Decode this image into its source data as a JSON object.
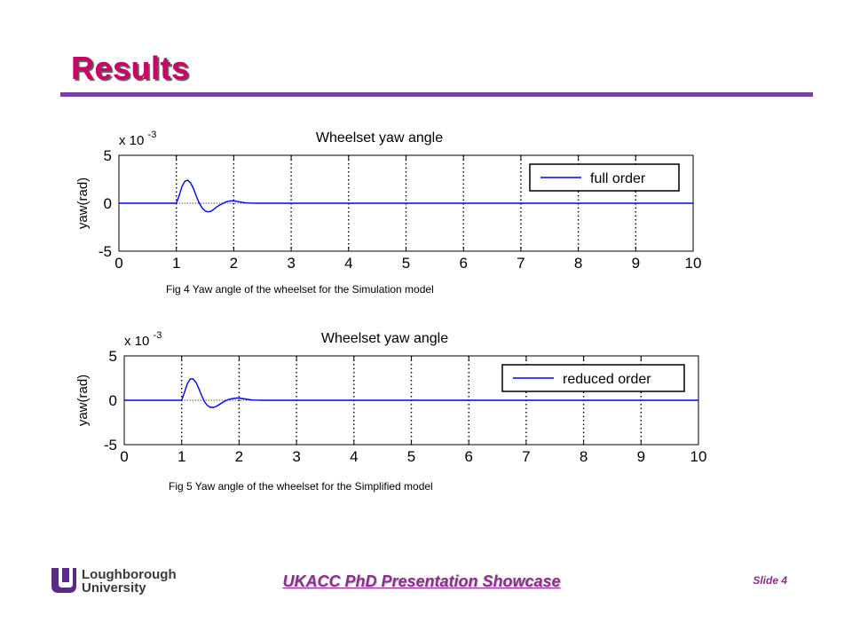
{
  "slide": {
    "title": "Results",
    "footer": "UKACC PhD Presentation Showcase",
    "slide_number": "Slide 4",
    "logo": {
      "line1": "Loughborough",
      "line2": "University",
      "mark_color": "#5b2a86"
    },
    "colors": {
      "title": "#cc0066",
      "rule": "#7b3fa0",
      "footer": "#8e2c8e",
      "series": "#0000ff"
    }
  },
  "figures": [
    {
      "caption": "Fig 4 Yaw angle of the wheelset for the Simulation model",
      "chart": {
        "title": "Wheelset yaw angle",
        "ylabel": "yaw(rad)",
        "exponent_label": "x 10",
        "exponent": "-3",
        "xticks": [
          "0",
          "1",
          "2",
          "3",
          "4",
          "5",
          "6",
          "7",
          "8",
          "9",
          "10"
        ],
        "yticks": [
          "5",
          "0",
          "-5"
        ],
        "legend": "full order"
      }
    },
    {
      "caption": "Fig 5 Yaw angle of the wheelset for the Simplified model",
      "chart": {
        "title": "Wheelset yaw angle",
        "ylabel": "yaw(rad)",
        "exponent_label": "x 10",
        "exponent": "-3",
        "xticks": [
          "0",
          "1",
          "2",
          "3",
          "4",
          "5",
          "6",
          "7",
          "8",
          "9",
          "10"
        ],
        "yticks": [
          "5",
          "0",
          "-5"
        ],
        "legend": "reduced order"
      }
    }
  ],
  "chart_data": [
    {
      "type": "line",
      "title": "Wheelset yaw angle",
      "xlabel": "",
      "ylabel": "yaw(rad)",
      "y_scale_note": "x 10^-3",
      "xlim": [
        0,
        10
      ],
      "ylim": [
        -5,
        5
      ],
      "grid": "vertical dotted lines at x = 1..9, dotted zero line",
      "legend_position": "top-right",
      "series": [
        {
          "name": "full order",
          "x": [
            0,
            1.0,
            1.05,
            1.1,
            1.15,
            1.2,
            1.25,
            1.3,
            1.35,
            1.4,
            1.45,
            1.5,
            1.55,
            1.6,
            1.65,
            1.7,
            1.75,
            1.8,
            1.85,
            1.9,
            1.95,
            2.0,
            2.05,
            2.1,
            2.15,
            2.2,
            2.25,
            2.3,
            2.35,
            2.4,
            2.5,
            10
          ],
          "y": [
            0,
            0,
            0.8,
            1.8,
            2.3,
            2.4,
            2.1,
            1.5,
            0.7,
            0.0,
            -0.5,
            -0.8,
            -0.9,
            -0.85,
            -0.65,
            -0.4,
            -0.2,
            -0.05,
            0.1,
            0.2,
            0.25,
            0.25,
            0.2,
            0.15,
            0.08,
            0.05,
            0.03,
            0.02,
            0.01,
            0,
            0,
            0
          ]
        }
      ]
    },
    {
      "type": "line",
      "title": "Wheelset yaw angle",
      "xlabel": "",
      "ylabel": "yaw(rad)",
      "y_scale_note": "x 10^-3",
      "xlim": [
        0,
        10
      ],
      "ylim": [
        -5,
        5
      ],
      "grid": "vertical dotted lines at x = 1..9, dotted zero line",
      "legend_position": "top-right",
      "series": [
        {
          "name": "reduced order",
          "x": [
            0,
            1.0,
            1.05,
            1.1,
            1.15,
            1.2,
            1.25,
            1.3,
            1.35,
            1.4,
            1.45,
            1.5,
            1.55,
            1.6,
            1.65,
            1.7,
            1.75,
            1.8,
            1.85,
            1.9,
            1.95,
            2.0,
            2.05,
            2.1,
            2.15,
            2.2,
            2.25,
            2.3,
            2.35,
            2.4,
            2.5,
            10
          ],
          "y": [
            0,
            0,
            0.9,
            1.9,
            2.4,
            2.4,
            2.0,
            1.3,
            0.5,
            -0.2,
            -0.6,
            -0.8,
            -0.8,
            -0.7,
            -0.5,
            -0.3,
            -0.1,
            0.05,
            0.15,
            0.2,
            0.25,
            0.25,
            0.2,
            0.15,
            0.1,
            0.05,
            0.03,
            0.02,
            0.01,
            0,
            0,
            0
          ]
        }
      ]
    }
  ]
}
